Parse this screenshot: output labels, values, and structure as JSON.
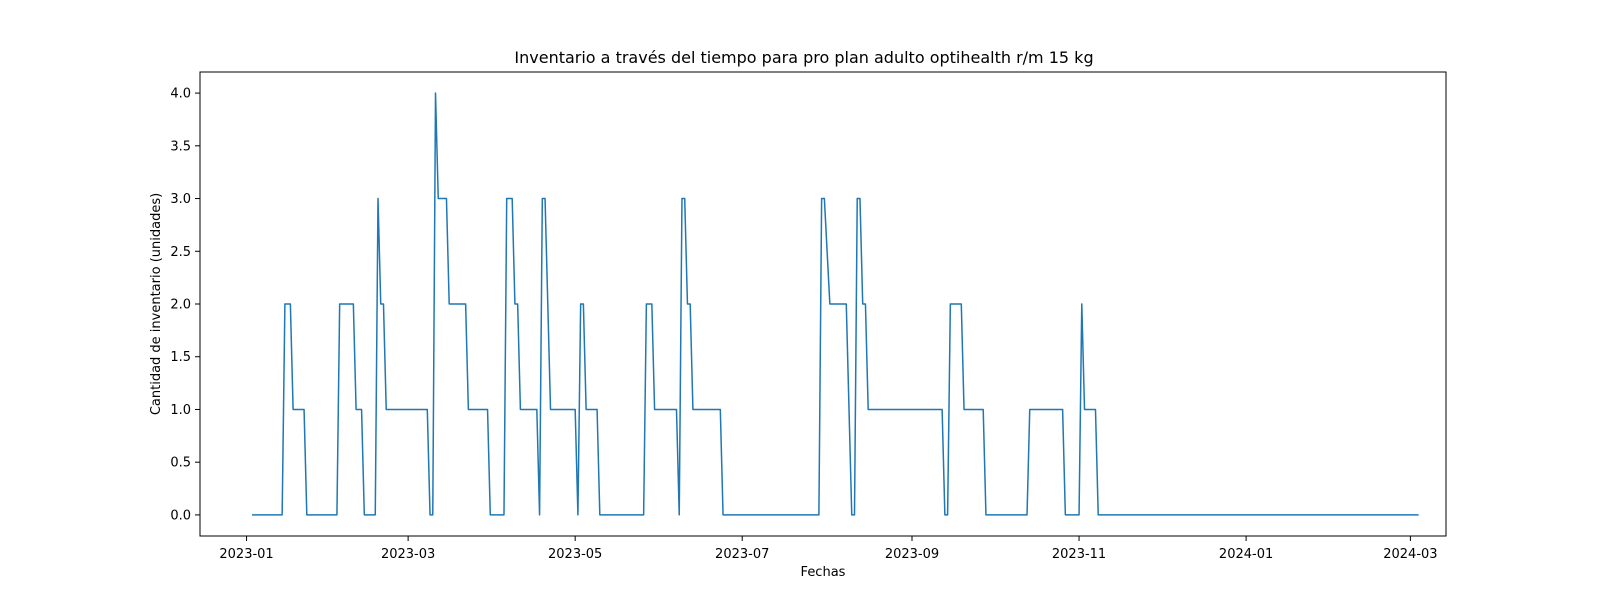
{
  "chart_data": {
    "type": "line",
    "title": "Inventario a través del tiempo para pro plan adulto optihealth r/m 15 kg",
    "xlabel": "Fechas",
    "ylabel": "Cantidad de inventario (unidades)",
    "grid": false,
    "line_color": "#1f77b4",
    "xlim": [
      "2022-12-15",
      "2024-03-14"
    ],
    "ylim": [
      -0.2,
      4.2
    ],
    "x_ticks": [
      "2023-01",
      "2023-03",
      "2023-05",
      "2023-07",
      "2023-09",
      "2023-11",
      "2024-01",
      "2024-03"
    ],
    "y_ticks": [
      "0.0",
      "0.5",
      "1.0",
      "1.5",
      "2.0",
      "2.5",
      "3.0",
      "3.5",
      "4.0"
    ],
    "series": [
      {
        "points": [
          [
            "2023-01-03",
            0
          ],
          [
            "2023-01-14",
            0
          ],
          [
            "2023-01-15",
            2
          ],
          [
            "2023-01-17",
            2
          ],
          [
            "2023-01-18",
            1
          ],
          [
            "2023-01-22",
            1
          ],
          [
            "2023-01-23",
            0
          ],
          [
            "2023-02-03",
            0
          ],
          [
            "2023-02-04",
            2
          ],
          [
            "2023-02-09",
            2
          ],
          [
            "2023-02-10",
            1
          ],
          [
            "2023-02-12",
            1
          ],
          [
            "2023-02-13",
            0
          ],
          [
            "2023-02-17",
            0
          ],
          [
            "2023-02-18",
            3
          ],
          [
            "2023-02-19",
            2
          ],
          [
            "2023-02-20",
            2
          ],
          [
            "2023-02-21",
            1
          ],
          [
            "2023-03-08",
            1
          ],
          [
            "2023-03-09",
            0
          ],
          [
            "2023-03-10",
            0
          ],
          [
            "2023-03-11",
            4
          ],
          [
            "2023-03-12",
            3
          ],
          [
            "2023-03-15",
            3
          ],
          [
            "2023-03-16",
            2
          ],
          [
            "2023-03-22",
            2
          ],
          [
            "2023-03-23",
            1
          ],
          [
            "2023-03-30",
            1
          ],
          [
            "2023-03-31",
            0
          ],
          [
            "2023-04-05",
            0
          ],
          [
            "2023-04-06",
            3
          ],
          [
            "2023-04-08",
            3
          ],
          [
            "2023-04-09",
            2
          ],
          [
            "2023-04-10",
            2
          ],
          [
            "2023-04-11",
            1
          ],
          [
            "2023-04-17",
            1
          ],
          [
            "2023-04-18",
            0
          ],
          [
            "2023-04-19",
            3
          ],
          [
            "2023-04-20",
            3
          ],
          [
            "2023-04-22",
            1
          ],
          [
            "2023-05-01",
            1
          ],
          [
            "2023-05-02",
            0
          ],
          [
            "2023-05-03",
            2
          ],
          [
            "2023-05-04",
            2
          ],
          [
            "2023-05-05",
            1
          ],
          [
            "2023-05-09",
            1
          ],
          [
            "2023-05-10",
            0
          ],
          [
            "2023-05-26",
            0
          ],
          [
            "2023-05-27",
            2
          ],
          [
            "2023-05-29",
            2
          ],
          [
            "2023-05-30",
            1
          ],
          [
            "2023-06-07",
            1
          ],
          [
            "2023-06-08",
            0
          ],
          [
            "2023-06-09",
            3
          ],
          [
            "2023-06-10",
            3
          ],
          [
            "2023-06-11",
            2
          ],
          [
            "2023-06-12",
            2
          ],
          [
            "2023-06-13",
            1
          ],
          [
            "2023-06-23",
            1
          ],
          [
            "2023-06-24",
            0
          ],
          [
            "2023-07-29",
            0
          ],
          [
            "2023-07-30",
            3
          ],
          [
            "2023-07-31",
            3
          ],
          [
            "2023-08-02",
            2
          ],
          [
            "2023-08-08",
            2
          ],
          [
            "2023-08-10",
            0
          ],
          [
            "2023-08-11",
            0
          ],
          [
            "2023-08-12",
            3
          ],
          [
            "2023-08-13",
            3
          ],
          [
            "2023-08-14",
            2
          ],
          [
            "2023-08-15",
            2
          ],
          [
            "2023-08-16",
            1
          ],
          [
            "2023-09-12",
            1
          ],
          [
            "2023-09-13",
            0
          ],
          [
            "2023-09-14",
            0
          ],
          [
            "2023-09-15",
            2
          ],
          [
            "2023-09-19",
            2
          ],
          [
            "2023-09-20",
            1
          ],
          [
            "2023-09-27",
            1
          ],
          [
            "2023-09-28",
            0
          ],
          [
            "2023-10-13",
            0
          ],
          [
            "2023-10-14",
            1
          ],
          [
            "2023-10-26",
            1
          ],
          [
            "2023-10-27",
            0
          ],
          [
            "2023-11-01",
            0
          ],
          [
            "2023-11-02",
            2
          ],
          [
            "2023-11-03",
            1
          ],
          [
            "2023-11-07",
            1
          ],
          [
            "2023-11-08",
            0
          ],
          [
            "2024-03-04",
            0
          ]
        ]
      }
    ]
  }
}
